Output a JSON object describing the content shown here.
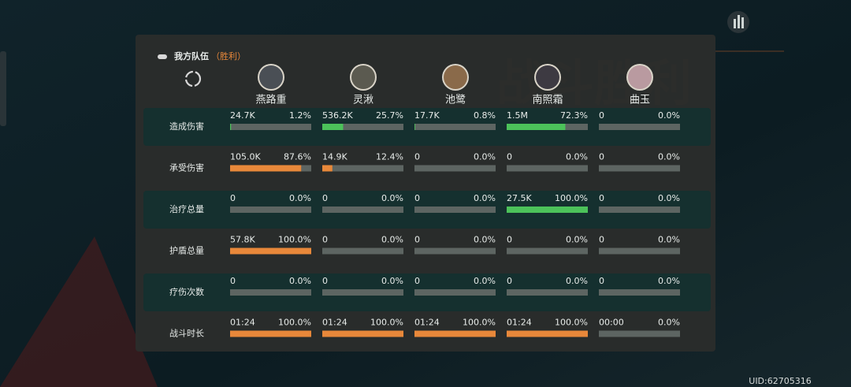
{
  "header": {
    "title": "我方队伍",
    "result": "（胜利）"
  },
  "characters": [
    "燕路重",
    "灵湫",
    "池鹭",
    "南照霜",
    "曲玉"
  ],
  "rows": [
    {
      "label": "造成伤害",
      "bar_color": "#4cc25a",
      "cells": [
        {
          "value": "24.7K",
          "share": 1.2,
          "share_label": "1.2%"
        },
        {
          "value": "536.2K",
          "share": 25.7,
          "share_label": "25.7%"
        },
        {
          "value": "17.7K",
          "share": 0.8,
          "share_label": "0.8%"
        },
        {
          "value": "1.5M",
          "share": 72.3,
          "share_label": "72.3%"
        },
        {
          "value": "0",
          "share": 0.0,
          "share_label": "0.0%"
        }
      ]
    },
    {
      "label": "承受伤害",
      "bar_color": "#e8883a",
      "cells": [
        {
          "value": "105.0K",
          "share": 87.6,
          "share_label": "87.6%"
        },
        {
          "value": "14.9K",
          "share": 12.4,
          "share_label": "12.4%"
        },
        {
          "value": "0",
          "share": 0.0,
          "share_label": "0.0%"
        },
        {
          "value": "0",
          "share": 0.0,
          "share_label": "0.0%"
        },
        {
          "value": "0",
          "share": 0.0,
          "share_label": "0.0%"
        }
      ]
    },
    {
      "label": "治疗总量",
      "bar_color": "#4cc25a",
      "cells": [
        {
          "value": "0",
          "share": 0.0,
          "share_label": "0.0%"
        },
        {
          "value": "0",
          "share": 0.0,
          "share_label": "0.0%"
        },
        {
          "value": "0",
          "share": 0.0,
          "share_label": "0.0%"
        },
        {
          "value": "27.5K",
          "share": 100.0,
          "share_label": "100.0%"
        },
        {
          "value": "0",
          "share": 0.0,
          "share_label": "0.0%"
        }
      ]
    },
    {
      "label": "护盾总量",
      "bar_color": "#e8883a",
      "cells": [
        {
          "value": "57.8K",
          "share": 100.0,
          "share_label": "100.0%"
        },
        {
          "value": "0",
          "share": 0.0,
          "share_label": "0.0%"
        },
        {
          "value": "0",
          "share": 0.0,
          "share_label": "0.0%"
        },
        {
          "value": "0",
          "share": 0.0,
          "share_label": "0.0%"
        },
        {
          "value": "0",
          "share": 0.0,
          "share_label": "0.0%"
        }
      ]
    },
    {
      "label": "疗伤次数",
      "bar_color": "#4cc25a",
      "cells": [
        {
          "value": "0",
          "share": 0.0,
          "share_label": "0.0%"
        },
        {
          "value": "0",
          "share": 0.0,
          "share_label": "0.0%"
        },
        {
          "value": "0",
          "share": 0.0,
          "share_label": "0.0%"
        },
        {
          "value": "0",
          "share": 0.0,
          "share_label": "0.0%"
        },
        {
          "value": "0",
          "share": 0.0,
          "share_label": "0.0%"
        }
      ]
    },
    {
      "label": "战斗时长",
      "bar_color": "#e8883a",
      "cells": [
        {
          "value": "01:24",
          "share": 100.0,
          "share_label": "100.0%"
        },
        {
          "value": "01:24",
          "share": 100.0,
          "share_label": "100.0%"
        },
        {
          "value": "01:24",
          "share": 100.0,
          "share_label": "100.0%"
        },
        {
          "value": "01:24",
          "share": 100.0,
          "share_label": "100.0%"
        },
        {
          "value": "00:00",
          "share": 0.0,
          "share_label": "0.0%"
        }
      ]
    }
  ],
  "uid": "UID:62705316"
}
